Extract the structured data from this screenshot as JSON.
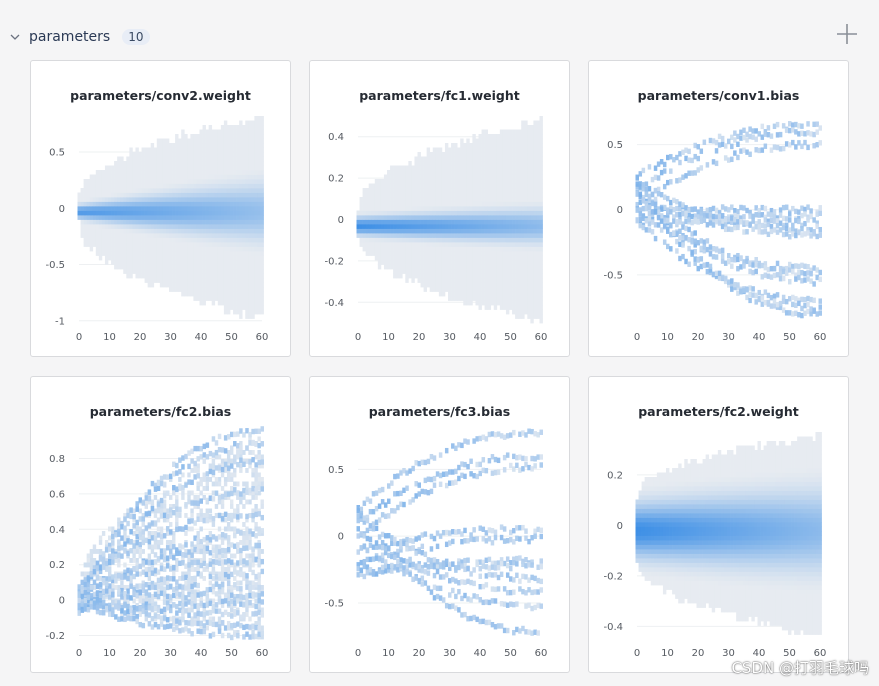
{
  "section": {
    "title": "parameters",
    "count": "10"
  },
  "accent": "#3d8fe6",
  "watermark": "CSDN @打羽毛球吗",
  "charts": [
    {
      "title": "parameters/conv2.weight",
      "kind": "weight",
      "x_ticks": [
        "0",
        "10",
        "20",
        "30",
        "40",
        "50",
        "60"
      ],
      "y_ticks": [
        {
          "v": 0.5,
          "label": "0.5"
        },
        {
          "v": 0,
          "label": "0"
        },
        {
          "v": -0.5,
          "label": "-0.5"
        },
        {
          "v": -1,
          "label": "-1"
        }
      ],
      "ylim": [
        -1.02,
        0.82
      ],
      "envelope": {
        "top_start": 0.12,
        "top_end": 0.82,
        "bot_start": -0.15,
        "bot_end": -0.98
      },
      "core": {
        "center": -0.03,
        "spread_start": 0.05,
        "spread_end": 0.22
      },
      "intensity": 0.9
    },
    {
      "title": "parameters/fc1.weight",
      "kind": "weight",
      "x_ticks": [
        "0",
        "10",
        "20",
        "30",
        "40",
        "50",
        "60"
      ],
      "y_ticks": [
        {
          "v": 0.4,
          "label": "0.4"
        },
        {
          "v": 0.2,
          "label": "0.2"
        },
        {
          "v": 0,
          "label": "0"
        },
        {
          "v": -0.2,
          "label": "-0.2"
        },
        {
          "v": -0.4,
          "label": "-0.4"
        }
      ],
      "ylim": [
        -0.5,
        0.5
      ],
      "envelope": {
        "top_start": 0.06,
        "top_end": 0.48,
        "bot_start": -0.08,
        "bot_end": -0.49
      },
      "core": {
        "center": -0.03,
        "spread_start": 0.035,
        "spread_end": 0.07
      },
      "intensity": 1.0
    },
    {
      "title": "parameters/conv1.bias",
      "kind": "bias",
      "x_ticks": [
        "0",
        "10",
        "20",
        "30",
        "40",
        "50",
        "60"
      ],
      "y_ticks": [
        {
          "v": 0.5,
          "label": "0.5"
        },
        {
          "v": 0,
          "label": "0"
        },
        {
          "v": -0.5,
          "label": "-0.5"
        }
      ],
      "ylim": [
        -0.87,
        0.72
      ],
      "starts": [
        0.25,
        0.15,
        0.05,
        0.0,
        -0.05,
        -0.1,
        0.2,
        0.1,
        -0.02,
        0.22,
        0.12,
        -0.08
      ],
      "ends": [
        0.65,
        0.6,
        0.5,
        0.0,
        -0.05,
        -0.1,
        -0.15,
        -0.2,
        -0.45,
        -0.5,
        -0.55,
        -0.7,
        -0.8,
        -0.75
      ]
    },
    {
      "title": "parameters/fc2.bias",
      "kind": "bias",
      "x_ticks": [
        "0",
        "10",
        "20",
        "30",
        "40",
        "50",
        "60"
      ],
      "y_ticks": [
        {
          "v": 0.8,
          "label": "0.8"
        },
        {
          "v": 0.6,
          "label": "0.6"
        },
        {
          "v": 0.4,
          "label": "0.4"
        },
        {
          "v": 0.2,
          "label": "0.2"
        },
        {
          "v": 0,
          "label": "0"
        },
        {
          "v": -0.2,
          "label": "-0.2"
        }
      ],
      "ylim": [
        -0.22,
        0.95
      ],
      "starts": [
        0.0,
        0.02,
        -0.02,
        0.05,
        0.08,
        -0.05,
        0.03,
        0.06,
        -0.03,
        0.01,
        0.04,
        -0.06
      ],
      "ends": [
        0.95,
        0.88,
        0.78,
        0.62,
        0.48,
        0.38,
        0.3,
        0.22,
        0.15,
        0.08,
        0.02,
        -0.02,
        -0.08,
        -0.15,
        -0.2
      ]
    },
    {
      "title": "parameters/fc3.bias",
      "kind": "bias",
      "x_ticks": [
        "0",
        "10",
        "20",
        "30",
        "40",
        "50",
        "60"
      ],
      "y_ticks": [
        {
          "v": 0.5,
          "label": "0.5"
        },
        {
          "v": 0,
          "label": "0"
        },
        {
          "v": -0.5,
          "label": "-0.5"
        }
      ],
      "ylim": [
        -0.77,
        0.78
      ],
      "starts": [
        0.2,
        0.1,
        0.0,
        -0.1,
        -0.2,
        -0.3,
        -0.25,
        0.15,
        0.05,
        -0.05
      ],
      "ends": [
        0.78,
        0.6,
        0.52,
        0.05,
        -0.02,
        -0.18,
        -0.22,
        -0.32,
        -0.42,
        -0.52,
        -0.72
      ]
    },
    {
      "title": "parameters/fc2.weight",
      "kind": "weight",
      "x_ticks": [
        "0",
        "10",
        "20",
        "30",
        "40",
        "50",
        "60"
      ],
      "y_ticks": [
        {
          "v": 0.2,
          "label": "0.2"
        },
        {
          "v": 0,
          "label": "0"
        },
        {
          "v": -0.2,
          "label": "-0.2"
        },
        {
          "v": -0.4,
          "label": "-0.4"
        }
      ],
      "ylim": [
        -0.45,
        0.37
      ],
      "envelope": {
        "top_start": 0.12,
        "top_end": 0.36,
        "bot_start": -0.14,
        "bot_end": -0.44
      },
      "core": {
        "center": -0.02,
        "spread_start": 0.09,
        "spread_end": 0.14
      },
      "intensity": 1.0
    }
  ]
}
